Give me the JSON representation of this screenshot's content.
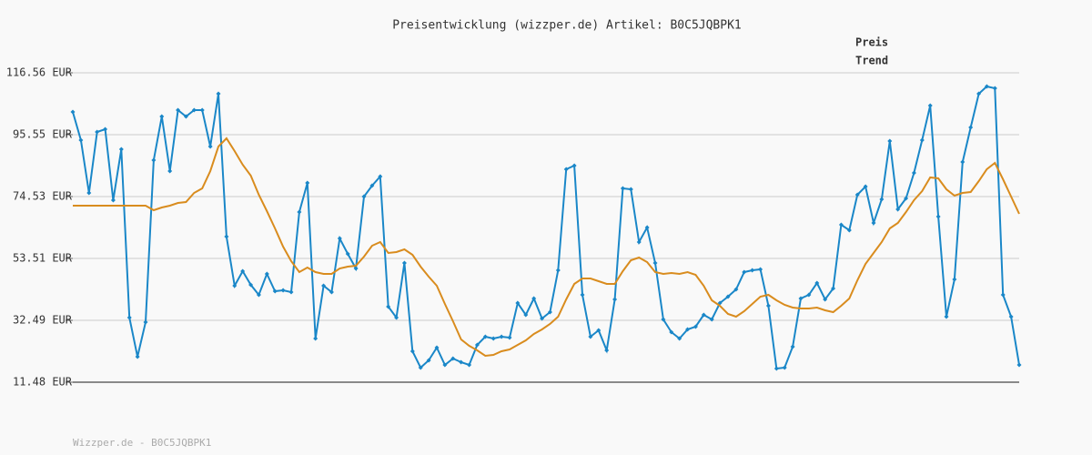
{
  "chart_data": {
    "type": "line",
    "title": "Preisentwicklung (wizzper.de) Artikel: B0C5JQBPK1",
    "footer": "Wizzper.de - B0C5JQBPK1",
    "ylim": [
      11.48,
      116.56
    ],
    "yticks": [
      {
        "value": 11.48,
        "label": "11.48 EUR"
      },
      {
        "value": 32.49,
        "label": "32.49 EUR"
      },
      {
        "value": 53.51,
        "label": "53.51 EUR"
      },
      {
        "value": 74.53,
        "label": "74.53 EUR"
      },
      {
        "value": 95.55,
        "label": "95.55 EUR"
      },
      {
        "value": 116.56,
        "label": "116.56 EUR"
      }
    ],
    "grid": true,
    "series": [
      {
        "name": "Preis",
        "color": "#1a87c8",
        "markers": true,
        "values": [
          103.27,
          93.69,
          75.76,
          96.47,
          97.4,
          73.29,
          90.6,
          33.42,
          20.13,
          31.88,
          86.89,
          101.73,
          83.18,
          103.89,
          101.73,
          103.89,
          103.89,
          91.53,
          109.45,
          60.93,
          44.24,
          49.19,
          44.55,
          41.15,
          48.26,
          42.39,
          42.7,
          42.08,
          69.27,
          79.16,
          26.31,
          44.24,
          42.08,
          60.31,
          55.06,
          50.11,
          74.53,
          78.24,
          81.33,
          37.13,
          33.42,
          51.97,
          21.99,
          16.42,
          18.9,
          23.22,
          17.35,
          19.52,
          18.28,
          17.35,
          24.15,
          26.93,
          26.31,
          26.93,
          26.62,
          38.37,
          34.35,
          39.91,
          33.11,
          35.28,
          49.49,
          83.8,
          85.04,
          41.15,
          26.93,
          29.1,
          22.3,
          39.6,
          77.31,
          77.0,
          59.08,
          64.02,
          51.97,
          32.81,
          28.48,
          26.31,
          29.41,
          30.33,
          34.35,
          32.81,
          38.37,
          40.53,
          43.0,
          48.88,
          49.49,
          49.8,
          37.44,
          16.12,
          16.42,
          23.53,
          39.91,
          41.15,
          45.17,
          39.6,
          43.31,
          64.95,
          63.09,
          75.15,
          77.93,
          65.57,
          73.6,
          93.38,
          70.2,
          73.91,
          82.56,
          93.69,
          105.43,
          67.73,
          33.73,
          46.4,
          86.27,
          98.02,
          109.45,
          111.92,
          111.31,
          41.15,
          33.73,
          17.35
        ]
      },
      {
        "name": "Trend",
        "color": "#d98c1e",
        "markers": false,
        "values": [
          71.44,
          71.44,
          71.44,
          71.44,
          71.44,
          71.44,
          71.44,
          71.44,
          71.44,
          71.44,
          69.89,
          70.82,
          71.44,
          72.37,
          72.67,
          75.76,
          77.31,
          83.18,
          91.53,
          94.31,
          89.98,
          85.35,
          81.64,
          75.15,
          69.58,
          63.71,
          57.53,
          52.58,
          48.88,
          50.42,
          48.88,
          48.26,
          48.26,
          50.11,
          50.73,
          51.04,
          54.13,
          57.84,
          59.08,
          55.37,
          55.68,
          56.61,
          54.75,
          50.73,
          47.33,
          44.24,
          38.06,
          32.19,
          26.0,
          23.84,
          22.3,
          20.44,
          20.75,
          21.99,
          22.61,
          24.15,
          25.7,
          27.86,
          29.41,
          31.26,
          33.73,
          39.6,
          44.86,
          46.71,
          46.71,
          45.78,
          44.86,
          44.86,
          49.19,
          52.89,
          53.82,
          52.28,
          48.88,
          48.26,
          48.57,
          48.26,
          48.88,
          47.95,
          44.24,
          39.29,
          37.44,
          34.66,
          33.73,
          35.59,
          38.06,
          40.53,
          41.15,
          39.29,
          37.75,
          36.82,
          36.51,
          36.51,
          36.82,
          35.9,
          35.28,
          37.44,
          39.91,
          46.09,
          51.66,
          55.37,
          59.08,
          63.71,
          65.57,
          69.27,
          73.29,
          76.38,
          81.02,
          80.71,
          77.0,
          74.84,
          75.76,
          76.07,
          79.78,
          83.8,
          85.96,
          80.4,
          74.53,
          68.66
        ]
      }
    ]
  }
}
